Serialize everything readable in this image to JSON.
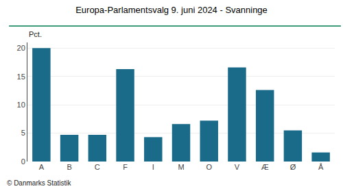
{
  "chart_data": {
    "type": "bar",
    "title": "Europa-Parlamentsvalg 9. juni 2024 - Svanninge",
    "ylabel": "Pct.",
    "footer": "© Danmarks Statistik",
    "categories": [
      "A",
      "B",
      "C",
      "F",
      "I",
      "M",
      "O",
      "V",
      "Æ",
      "Ø",
      "Å"
    ],
    "values": [
      20.0,
      4.7,
      4.7,
      16.3,
      4.3,
      6.6,
      7.2,
      16.6,
      12.6,
      5.5,
      1.6
    ],
    "color": "#1a6b8a",
    "ylim": [
      0,
      21
    ],
    "yticks": [
      0,
      5,
      10,
      15,
      20
    ],
    "grid": true
  }
}
